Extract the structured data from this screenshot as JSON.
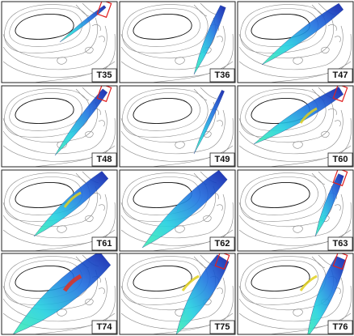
{
  "panels": [
    "T35",
    "T36",
    "T47",
    "T48",
    "T49",
    "T60",
    "T61",
    "T62",
    "T63",
    "T74",
    "T75",
    "T76"
  ]
}
